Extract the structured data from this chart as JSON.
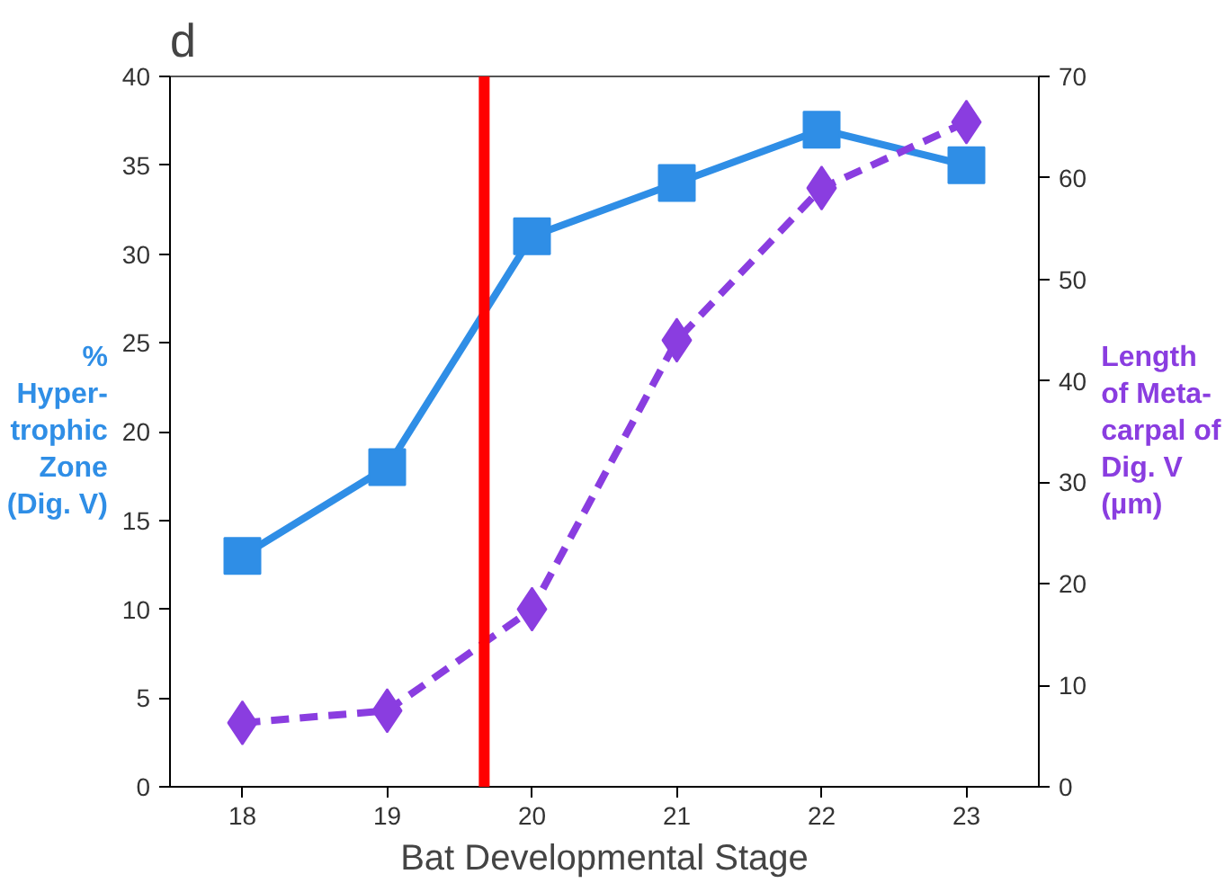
{
  "chart_data": {
    "type": "line",
    "title": "d",
    "xlabel": "Bat Developmental Stage",
    "ylabel": "%\nHyper-\ntrophic\nZone\n(Dig. V)",
    "y2label": "Length\nof Meta-\ncarpal of\nDig. V\n(µm)",
    "x": [
      18,
      19,
      20,
      21,
      22,
      23
    ],
    "xlim": [
      17.5,
      23.5
    ],
    "xticks": [
      18,
      19,
      20,
      21,
      22,
      23
    ],
    "ylim": [
      0,
      40
    ],
    "yticks": [
      0,
      5,
      10,
      15,
      20,
      25,
      30,
      35,
      40
    ],
    "y2lim": [
      0,
      70
    ],
    "y2ticks": [
      0,
      10,
      20,
      30,
      40,
      50,
      60,
      70
    ],
    "grid": false,
    "series": [
      {
        "color": "#2f8ee6",
        "marker": "square",
        "line_style": "solid",
        "values": [
          13,
          18,
          31,
          34,
          37,
          35
        ]
      },
      {
        "color": "#8a3de0",
        "marker": "diamond",
        "line_style": "dashed",
        "axis": "y2",
        "values": [
          6.3,
          7.5,
          17.5,
          44,
          59,
          65.5
        ]
      }
    ],
    "ref_lines": [
      {
        "axis": "x",
        "value": 19.67,
        "label": null,
        "color": "#ff0000"
      }
    ]
  }
}
